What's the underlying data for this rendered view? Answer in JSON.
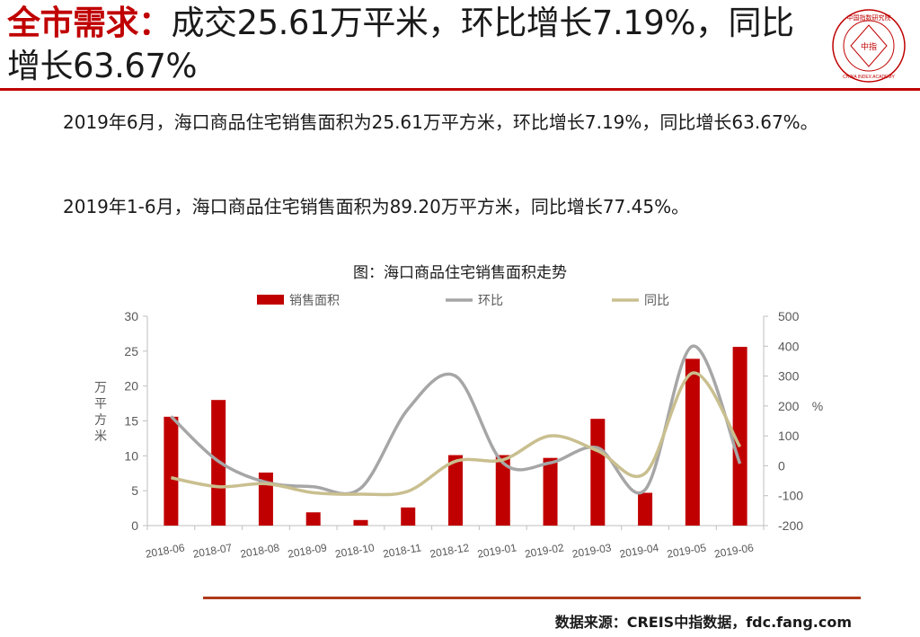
{
  "headline": {
    "highlight": "全市需求：",
    "rest": "成交25.61万平米，环比增长7.19%，同比增长63.67%"
  },
  "logo": {
    "top_text": "中国指数研究院",
    "center_text": "中指",
    "bottom_text": "CHINA INDEX ACADEMY",
    "color": "#c00000"
  },
  "paragraphs": {
    "p1": "2019年6月，海口商品住宅销售面积为25.61万平方米，环比增长7.19%，同比增长63.67%。",
    "p2": "2019年1-6月，海口商品住宅销售面积为89.20万平方米，同比增长77.45%。"
  },
  "chart_caption": "图：海口商品住宅销售面积走势",
  "source": "数据来源：CREIS中指数据，fdc.fang.com",
  "chart_data": {
    "type": "bar",
    "categories": [
      "2018-06",
      "2018-07",
      "2018-08",
      "2018-09",
      "2018-10",
      "2018-11",
      "2018-12",
      "2019-01",
      "2019-02",
      "2019-03",
      "2019-04",
      "2019-05",
      "2019-06"
    ],
    "series": [
      {
        "name": "销售面积",
        "type": "bar",
        "axis": "left",
        "color": "#c00000",
        "values": [
          15.6,
          18.0,
          7.6,
          1.9,
          0.8,
          2.6,
          10.1,
          10.1,
          9.7,
          15.3,
          4.7,
          23.9,
          25.61
        ]
      },
      {
        "name": "环比",
        "type": "line",
        "axis": "right",
        "color": "#a6a6a6",
        "values": [
          165,
          15,
          -55,
          -70,
          -75,
          190,
          300,
          10,
          10,
          60,
          -80,
          400,
          7.19
        ]
      },
      {
        "name": "同比",
        "type": "line",
        "axis": "right",
        "color": "#c9bf8f",
        "values": [
          -40,
          -70,
          -60,
          -90,
          -95,
          -85,
          15,
          20,
          100,
          50,
          -25,
          310,
          63.67
        ]
      }
    ],
    "ylabel": "万平方米",
    "y2label": "%",
    "ylim": [
      0,
      30
    ],
    "yticks": [
      0,
      5,
      10,
      15,
      20,
      25,
      30
    ],
    "y2lim": [
      -200,
      500
    ],
    "y2ticks": [
      -200,
      -100,
      0,
      100,
      200,
      300,
      400,
      500
    ],
    "legend_position": "top",
    "grid": false
  }
}
